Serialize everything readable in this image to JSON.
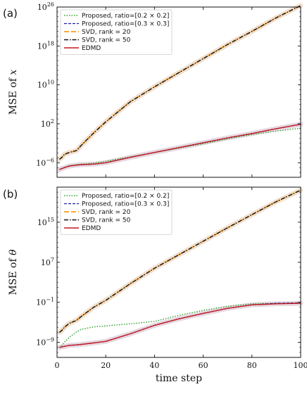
{
  "chart_data": [
    {
      "type": "line",
      "panel_label": "(a)",
      "ylabel": "MSE of ",
      "ylabel_var": "x",
      "xlabel": "",
      "xlim": [
        0,
        100
      ],
      "yscale": "log",
      "ylim_log10": [
        -9,
        26
      ],
      "yticks": [
        {
          "exp": -6,
          "label": "10",
          "sup": "−6"
        },
        {
          "exp": 2,
          "label": "10",
          "sup": "2"
        },
        {
          "exp": 10,
          "label": "10",
          "sup": "10"
        },
        {
          "exp": 18,
          "label": "10",
          "sup": "18"
        },
        {
          "exp": 26,
          "label": "10",
          "sup": "26"
        }
      ],
      "xticks": [],
      "legend_position": "top-left",
      "x": [
        1,
        2,
        3,
        5,
        8,
        10,
        15,
        20,
        30,
        40,
        50,
        60,
        70,
        80,
        90,
        100
      ],
      "series": [
        {
          "name": "Proposed, ratio=[0.2 × 0.2]",
          "color": "#2ca02c",
          "dash": "1.5,2",
          "width": 1.4,
          "values_log10": [
            -7.4,
            -7.2,
            -7.0,
            -6.6,
            -6.4,
            -6.3,
            -6.1,
            -5.7,
            -4.8,
            -3.9,
            -3.0,
            -2.1,
            -1.1,
            -0.2,
            0.5,
            1.1
          ]
        },
        {
          "name": "Proposed, ratio=[0.3 × 0.3]",
          "color": "#1f1f9c",
          "dash": "4,2",
          "width": 1.3,
          "values_log10": [
            -7.4,
            -7.2,
            -7.0,
            -6.7,
            -6.5,
            -6.4,
            -6.3,
            -6.0,
            -4.9,
            -3.9,
            -2.9,
            -1.9,
            -0.9,
            0.0,
            1.0,
            1.9
          ]
        },
        {
          "name": "SVD, rank = 20",
          "color": "#ff9a1a",
          "dash": "7,3",
          "width": 1.8,
          "values_log10": [
            -5.3,
            -4.9,
            -4.3,
            -3.9,
            -3.5,
            -2.4,
            0.1,
            2.4,
            6.5,
            9.6,
            12.5,
            15.4,
            18.3,
            21.0,
            23.8,
            26.3
          ]
        },
        {
          "name": "SVD, rank = 50",
          "color": "#111111",
          "dash": "6,2,1.5,2",
          "width": 1.4,
          "values_log10": [
            -5.3,
            -4.9,
            -4.3,
            -3.9,
            -3.5,
            -2.4,
            0.1,
            2.4,
            6.5,
            9.6,
            12.5,
            15.4,
            18.3,
            21.0,
            23.8,
            26.3
          ]
        },
        {
          "name": "EDMD",
          "color": "#c4181f",
          "dash": "",
          "width": 1.4,
          "values_log10": [
            -7.4,
            -7.2,
            -7.0,
            -6.7,
            -6.5,
            -6.4,
            -6.3,
            -6.0,
            -4.9,
            -3.9,
            -2.9,
            -1.9,
            -0.9,
            0.0,
            1.0,
            1.9
          ]
        }
      ]
    },
    {
      "type": "line",
      "panel_label": "(b)",
      "ylabel": "MSE of ",
      "ylabel_var": "θ",
      "xlabel": "time step",
      "xlim": [
        0,
        100
      ],
      "yscale": "log",
      "ylim_log10": [
        -12,
        22
      ],
      "yticks": [
        {
          "exp": -9,
          "label": "10",
          "sup": "−9"
        },
        {
          "exp": -1,
          "label": "10",
          "sup": "−1"
        },
        {
          "exp": 7,
          "label": "10",
          "sup": "7"
        },
        {
          "exp": 15,
          "label": "10",
          "sup": "15"
        }
      ],
      "xticks": [
        0,
        20,
        40,
        60,
        80,
        100
      ],
      "legend_position": "top-left",
      "x": [
        1,
        2,
        3,
        5,
        8,
        10,
        15,
        20,
        30,
        40,
        50,
        60,
        70,
        80,
        90,
        100
      ],
      "series": [
        {
          "name": "Proposed, ratio=[0.2 × 0.2]",
          "color": "#2ca02c",
          "dash": "1.5,2",
          "width": 1.4,
          "values_log10": [
            -10.0,
            -9.6,
            -9.0,
            -8.0,
            -6.9,
            -6.4,
            -5.9,
            -5.7,
            -5.3,
            -4.8,
            -3.6,
            -2.6,
            -1.8,
            -1.3,
            -1.2,
            -1.2
          ]
        },
        {
          "name": "Proposed, ratio=[0.3 × 0.3]",
          "color": "#1f1f9c",
          "dash": "4,2",
          "width": 1.3,
          "values_log10": [
            -10.0,
            -9.9,
            -9.8,
            -9.6,
            -9.5,
            -9.4,
            -9.1,
            -8.8,
            -7.3,
            -5.6,
            -4.3,
            -3.2,
            -2.2,
            -1.5,
            -1.2,
            -1.1
          ]
        },
        {
          "name": "SVD, rank = 20",
          "color": "#ff9a1a",
          "dash": "7,3",
          "width": 1.8,
          "values_log10": [
            -7.0,
            -6.6,
            -6.0,
            -5.2,
            -4.6,
            -3.8,
            -2.0,
            -0.6,
            2.7,
            5.8,
            8.5,
            11.2,
            13.9,
            16.5,
            19.1,
            21.4
          ]
        },
        {
          "name": "SVD, rank = 50",
          "color": "#111111",
          "dash": "6,2,1.5,2",
          "width": 1.4,
          "values_log10": [
            -7.0,
            -6.6,
            -6.0,
            -5.2,
            -4.6,
            -3.8,
            -2.0,
            -0.6,
            2.7,
            5.8,
            8.5,
            11.2,
            13.9,
            16.5,
            19.1,
            21.4
          ]
        },
        {
          "name": "EDMD",
          "color": "#c4181f",
          "dash": "",
          "width": 1.4,
          "values_log10": [
            -10.0,
            -9.9,
            -9.8,
            -9.6,
            -9.5,
            -9.4,
            -9.1,
            -8.8,
            -7.3,
            -5.6,
            -4.3,
            -3.2,
            -2.2,
            -1.5,
            -1.3,
            -1.2
          ]
        }
      ]
    }
  ]
}
